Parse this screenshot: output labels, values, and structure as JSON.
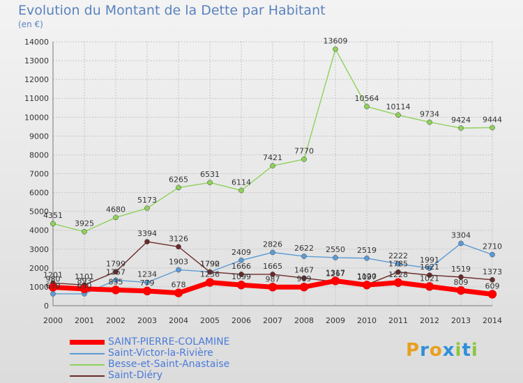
{
  "header": {
    "title": "Evolution du Montant de la Dette par Habitant",
    "unit": "(en €)"
  },
  "brand": {
    "letters": [
      "P",
      "r",
      "o",
      "x",
      "i",
      "t",
      "i"
    ],
    "colors": [
      "#e8a020",
      "#2f8fd8",
      "#e8a020",
      "#2f8fd8",
      "#8cc63f",
      "#2f8fd8",
      "#8cc63f"
    ]
  },
  "chart_data": {
    "type": "line",
    "title": "Evolution du Montant de la Dette par Habitant",
    "ylabel": "(en €)",
    "xlabel": "",
    "x": [
      "2000",
      "2001",
      "2002",
      "2003",
      "2004",
      "2005",
      "2006",
      "2007",
      "2008",
      "2009",
      "2010",
      "2011",
      "2012",
      "2013",
      "2014"
    ],
    "ylim": [
      0,
      14000
    ],
    "yticks": [
      0,
      1000,
      2000,
      3000,
      4000,
      5000,
      6000,
      7000,
      8000,
      9000,
      10000,
      11000,
      12000,
      13000,
      14000
    ],
    "grid": true,
    "legend_position": "bottom-left",
    "series": [
      {
        "name": "SAINT-PIERRE-COLAMINE",
        "color": "#ff0000",
        "values": [
          980,
          893,
          835,
          779,
          678,
          1236,
          1099,
          987,
          989,
          1317,
          1097,
          1228,
          1021,
          809,
          609
        ]
      },
      {
        "name": "Saint-Victor-la-Rivière",
        "color": "#5b9bd5",
        "values": [
          630,
          630,
          1357,
          1234,
          1903,
          1792,
          2409,
          2826,
          2622,
          2550,
          2519,
          2222,
          1991,
          3304,
          2710
        ]
      },
      {
        "name": "Besse-et-Saint-Anastaise",
        "color": "#8ed15a",
        "values": [
          4351,
          3925,
          4680,
          5173,
          6265,
          6531,
          6114,
          7421,
          7770,
          13609,
          10564,
          10114,
          9734,
          9424,
          9444
        ]
      },
      {
        "name": "Saint-Diéry",
        "color": "#6b2a2a",
        "values": [
          1201,
          1101,
          1799,
          3394,
          3126,
          1790,
          1666,
          1665,
          1467,
          1267,
          1120,
          1785,
          1621,
          1519,
          1373
        ]
      }
    ]
  }
}
